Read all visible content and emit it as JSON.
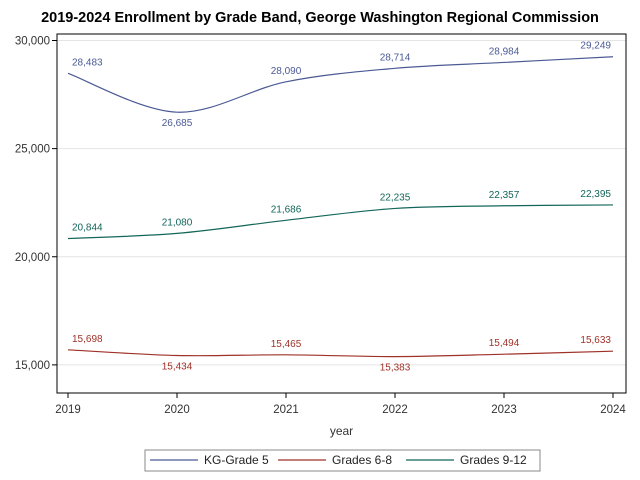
{
  "chart_data": {
    "type": "line",
    "title": "2019-2024 Enrollment by Grade Band, George Washington Regional Commission",
    "xlabel": "year",
    "ylabel": "",
    "x": [
      "2019",
      "2020",
      "2021",
      "2022",
      "2023",
      "2024"
    ],
    "ylim": [
      13700,
      30300
    ],
    "yticks": [
      15000,
      20000,
      25000,
      30000
    ],
    "ytick_labels": [
      "15,000",
      "20,000",
      "25,000",
      "30,000"
    ],
    "grid": true,
    "legend_position": "bottom",
    "series": [
      {
        "name": "KG-Grade 5",
        "color": "#4b5a94",
        "values": [
          28483,
          26685,
          28090,
          28714,
          28984,
          29249
        ],
        "labels": [
          "28,483",
          "26,685",
          "28,090",
          "28,714",
          "28,984",
          "29,249"
        ]
      },
      {
        "name": "Grades 6-8",
        "color": "#9e3128",
        "values": [
          15698,
          15434,
          15465,
          15383,
          15494,
          15633
        ],
        "labels": [
          "15,698",
          "15,434",
          "15,465",
          "15,383",
          "15,494",
          "15,633"
        ]
      },
      {
        "name": "Grades 9-12",
        "color": "#12665a",
        "values": [
          20844,
          21080,
          21686,
          22235,
          22357,
          22395
        ],
        "labels": [
          "20,844",
          "21,080",
          "21,686",
          "22,235",
          "22,357",
          "22,395"
        ]
      }
    ]
  }
}
